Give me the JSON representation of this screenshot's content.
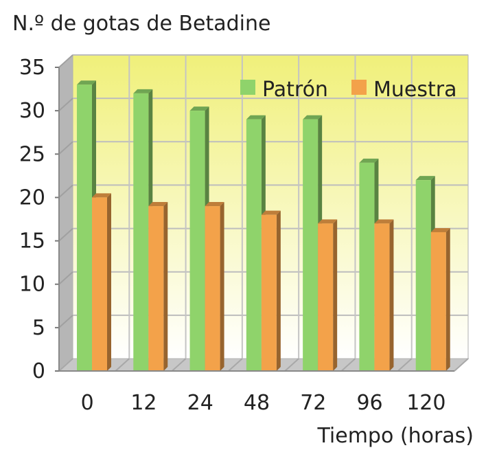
{
  "chart_data": {
    "type": "bar",
    "title": "",
    "ylabel": "N.º de gotas de Betadine",
    "xlabel": "Tiempo (horas)",
    "categories": [
      "0",
      "12",
      "24",
      "48",
      "72",
      "96",
      "120"
    ],
    "series": [
      {
        "name": "Patrón",
        "values": [
          33,
          32,
          30,
          29,
          29,
          24,
          22
        ],
        "color": "#8fd36b"
      },
      {
        "name": "Muestra",
        "values": [
          20,
          19,
          19,
          18,
          17,
          17,
          16
        ],
        "color": "#f3a24a"
      }
    ],
    "ylim": [
      0,
      35
    ],
    "yticks": [
      0,
      5,
      10,
      15,
      20,
      25,
      30,
      35
    ],
    "grid": true,
    "legend": "top-right",
    "background_gradient": [
      "#f0f07a",
      "#ffffff"
    ]
  }
}
